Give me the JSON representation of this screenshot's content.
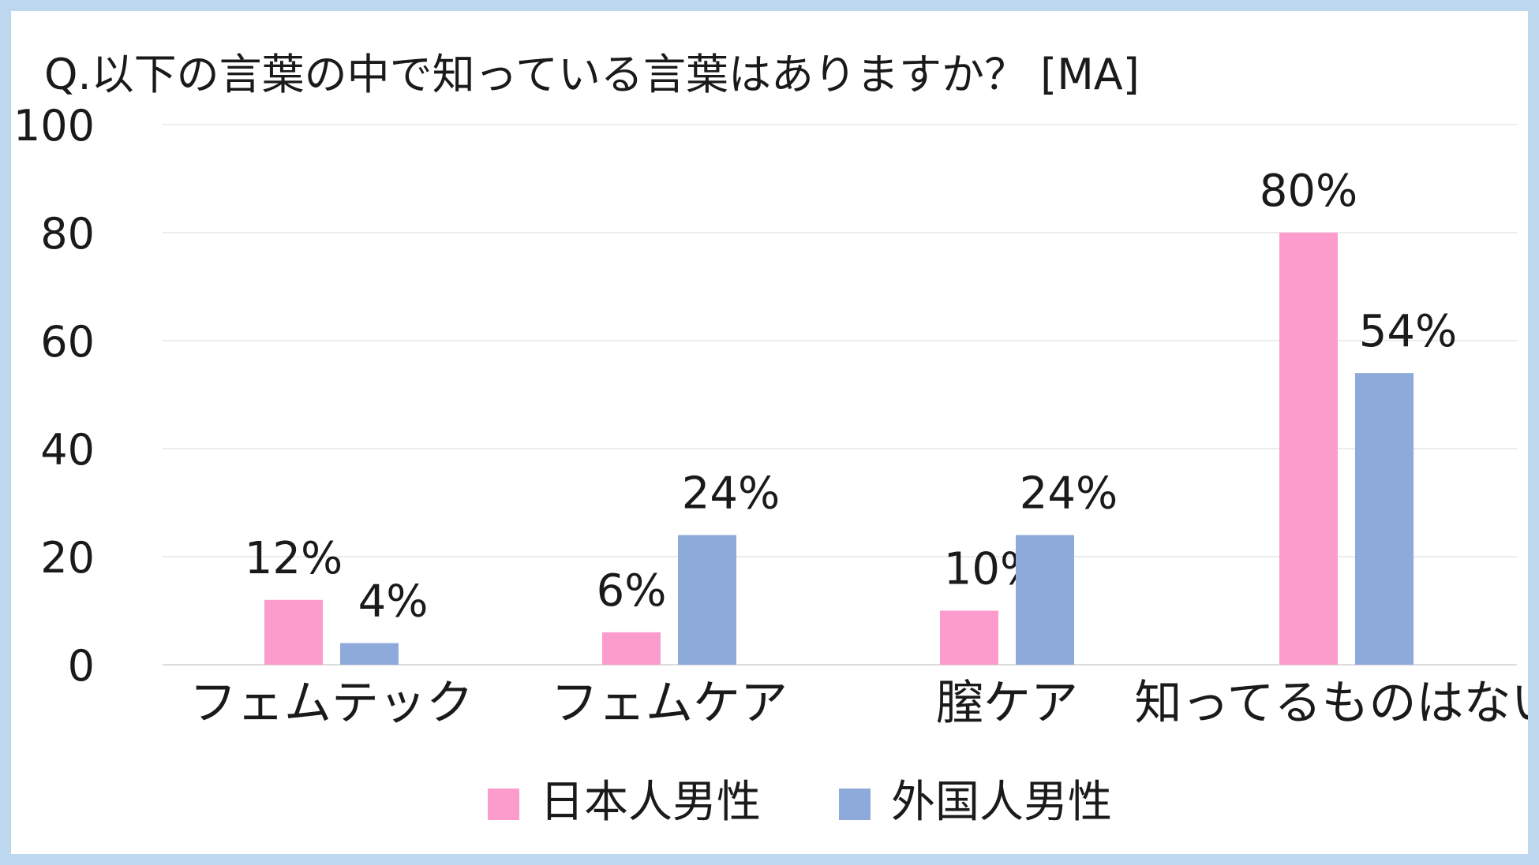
{
  "chart_data": {
    "type": "bar",
    "title": "Q.以下の言葉の中で知っている言葉はありますか？ [MA]",
    "xlabel": "",
    "ylabel": "",
    "ylim": [
      0,
      100
    ],
    "yticks": [
      "0",
      "20",
      "40",
      "60",
      "80",
      "100"
    ],
    "categories": [
      "フェムテック",
      "フェムケア",
      "膣ケア",
      "知ってるものはない"
    ],
    "series": [
      {
        "name": "日本人男性",
        "color": "#fc9ccc",
        "values": [
          12,
          6,
          10,
          80
        ],
        "labels": [
          "12%",
          "6%",
          "10%",
          "80%"
        ]
      },
      {
        "name": "外国人男性",
        "color": "#8eaadb",
        "values": [
          4,
          24,
          24,
          54
        ],
        "labels": [
          "4%",
          "24%",
          "24%",
          "54%"
        ]
      }
    ],
    "grid": true,
    "legend": "bottom"
  }
}
